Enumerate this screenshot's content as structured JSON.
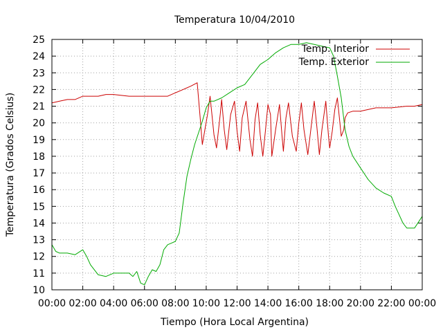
{
  "chart_data": {
    "type": "line",
    "title": "Temperatura 10/04/2010",
    "xlabel": "Tiempo (Hora Local Argentina)",
    "ylabel": "Temperatura (Grados Celsius)",
    "xlim": [
      "00:00",
      "24:00"
    ],
    "ylim": [
      10,
      25
    ],
    "xticks": [
      "00:00",
      "02:00",
      "04:00",
      "06:00",
      "08:00",
      "10:00",
      "12:00",
      "14:00",
      "16:00",
      "18:00",
      "20:00",
      "22:00",
      "00:00"
    ],
    "yticks": [
      10,
      11,
      12,
      13,
      14,
      15,
      16,
      17,
      18,
      19,
      20,
      21,
      22,
      23,
      24,
      25
    ],
    "grid": true,
    "legend_position": "top-right",
    "series": [
      {
        "name": "Temp. Interior",
        "color": "#cc0000",
        "x": [
          "00:00",
          "00:30",
          "01:00",
          "01:30",
          "02:00",
          "02:30",
          "03:00",
          "03:30",
          "04:00",
          "05:00",
          "06:00",
          "07:00",
          "07:30",
          "08:00",
          "08:30",
          "09:00",
          "09:25",
          "09:35",
          "09:45",
          "10:05",
          "10:15",
          "10:30",
          "10:40",
          "10:55",
          "11:00",
          "11:10",
          "11:20",
          "11:35",
          "11:50",
          "12:00",
          "12:10",
          "12:20",
          "12:35",
          "12:50",
          "13:00",
          "13:10",
          "13:20",
          "13:30",
          "13:40",
          "13:50",
          "14:00",
          "14:10",
          "14:15",
          "14:30",
          "14:45",
          "14:55",
          "15:00",
          "15:10",
          "15:20",
          "15:35",
          "15:50",
          "16:00",
          "16:10",
          "16:20",
          "16:35",
          "16:50",
          "17:00",
          "17:10",
          "17:20",
          "17:30",
          "17:45",
          "17:55",
          "18:00",
          "18:10",
          "18:20",
          "18:30",
          "18:45",
          "18:55",
          "19:00",
          "19:10",
          "19:30",
          "20:00",
          "21:00",
          "22:00",
          "23:00",
          "23:30",
          "24:00"
        ],
        "values": [
          21.2,
          21.3,
          21.4,
          21.4,
          21.6,
          21.6,
          21.6,
          21.7,
          21.7,
          21.6,
          21.6,
          21.6,
          21.6,
          21.8,
          22.0,
          22.2,
          22.4,
          20.6,
          18.7,
          20.5,
          21.6,
          19.3,
          18.5,
          20.6,
          21.4,
          19.6,
          18.4,
          20.5,
          21.3,
          19.5,
          18.3,
          20.3,
          21.3,
          19.0,
          18.0,
          20.2,
          21.2,
          19.3,
          18.0,
          19.5,
          21.1,
          20.5,
          18.0,
          19.6,
          21.1,
          19.2,
          18.3,
          20.3,
          21.2,
          19.2,
          18.3,
          20.0,
          21.2,
          19.6,
          18.1,
          20.0,
          21.3,
          19.8,
          18.1,
          19.6,
          21.3,
          19.3,
          18.5,
          19.5,
          20.8,
          21.5,
          19.2,
          19.6,
          20.3,
          20.6,
          20.7,
          20.7,
          20.9,
          20.9,
          21.0,
          21.0,
          21.1
        ]
      },
      {
        "name": "Temp. Exterior",
        "color": "#00aa00",
        "x": [
          "00:00",
          "00:15",
          "00:30",
          "01:00",
          "01:30",
          "02:00",
          "02:15",
          "02:30",
          "03:00",
          "03:30",
          "04:00",
          "04:30",
          "05:00",
          "05:15",
          "05:30",
          "05:45",
          "06:00",
          "06:15",
          "06:30",
          "06:45",
          "07:00",
          "07:15",
          "07:30",
          "07:45",
          "08:00",
          "08:15",
          "08:30",
          "08:45",
          "09:00",
          "09:15",
          "09:30",
          "09:45",
          "10:00",
          "10:15",
          "10:30",
          "11:00",
          "11:30",
          "12:00",
          "12:30",
          "13:00",
          "13:30",
          "14:00",
          "14:30",
          "15:00",
          "15:30",
          "16:00",
          "16:30",
          "17:00",
          "17:30",
          "18:00",
          "18:15",
          "18:30",
          "18:45",
          "19:00",
          "19:15",
          "19:30",
          "20:00",
          "20:30",
          "21:00",
          "21:30",
          "22:00",
          "22:15",
          "22:30",
          "22:45",
          "23:00",
          "23:30",
          "24:00"
        ],
        "values": [
          12.7,
          12.3,
          12.2,
          12.2,
          12.1,
          12.4,
          12.0,
          11.5,
          10.9,
          10.8,
          11.0,
          11.0,
          11.0,
          10.8,
          11.1,
          10.4,
          10.3,
          10.8,
          11.2,
          11.1,
          11.5,
          12.4,
          12.7,
          12.8,
          12.9,
          13.4,
          15.2,
          16.8,
          17.8,
          18.7,
          19.4,
          20.1,
          20.9,
          21.3,
          21.3,
          21.5,
          21.8,
          22.1,
          22.3,
          22.9,
          23.5,
          23.8,
          24.2,
          24.5,
          24.7,
          24.7,
          24.8,
          24.7,
          24.6,
          24.5,
          24.0,
          22.8,
          21.5,
          19.6,
          18.6,
          18.0,
          17.3,
          16.6,
          16.1,
          15.8,
          15.6,
          15.0,
          14.5,
          14.0,
          13.7,
          13.7,
          14.4
        ]
      }
    ]
  }
}
